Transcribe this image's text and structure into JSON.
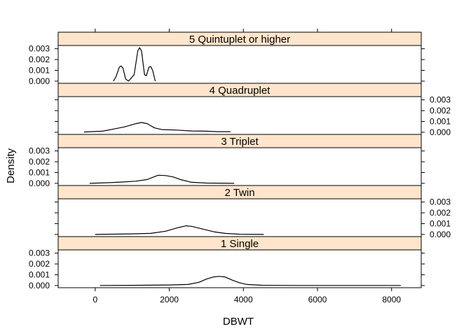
{
  "chart_data": {
    "type": "line",
    "subtype": "density-lattice",
    "title": "",
    "xlabel": "DBWT",
    "ylabel": "Density",
    "xlim": [
      -1000,
      8800
    ],
    "ylim": [
      -0.0002,
      0.0033
    ],
    "x_ticks": [
      0,
      2000,
      4000,
      6000,
      8000
    ],
    "x_tick_labels": [
      "0",
      "2000",
      "4000",
      "6000",
      "8000"
    ],
    "y_ticks": [
      0,
      0.001,
      0.002,
      0.003
    ],
    "y_tick_labels": [
      "0.000",
      "0.001",
      "0.002",
      "0.003"
    ],
    "strip_color": "#ffe5cc",
    "line_color": "#000000",
    "panels": [
      {
        "label": "1 Single",
        "y_axis_side": "left",
        "points": [
          [
            130,
            1e-05
          ],
          [
            1000,
            2e-05
          ],
          [
            2000,
            5e-05
          ],
          [
            2500,
            0.0001
          ],
          [
            2800,
            0.0003
          ],
          [
            3000,
            0.0006
          ],
          [
            3200,
            0.0008
          ],
          [
            3350,
            0.00085
          ],
          [
            3500,
            0.0008
          ],
          [
            3700,
            0.0005
          ],
          [
            3900,
            0.00025
          ],
          [
            4100,
            0.0001
          ],
          [
            4500,
            3e-05
          ],
          [
            5500,
            1e-05
          ],
          [
            8250,
            1e-05
          ]
        ]
      },
      {
        "label": "2 Twin",
        "y_axis_side": "right",
        "points": [
          [
            0,
            0.0
          ],
          [
            1000,
            5e-05
          ],
          [
            1500,
            0.0001
          ],
          [
            1900,
            0.0003
          ],
          [
            2200,
            0.0006
          ],
          [
            2450,
            0.0008
          ],
          [
            2600,
            0.00075
          ],
          [
            2900,
            0.0005
          ],
          [
            3200,
            0.00025
          ],
          [
            3500,
            0.0001
          ],
          [
            3900,
            2e-05
          ],
          [
            4550,
            0.0
          ]
        ]
      },
      {
        "label": "3 Triplet",
        "y_axis_side": "left",
        "points": [
          [
            -150,
            0.0
          ],
          [
            300,
            5e-05
          ],
          [
            700,
            0.00012
          ],
          [
            1100,
            0.0002
          ],
          [
            1400,
            0.00035
          ],
          [
            1700,
            0.00075
          ],
          [
            1900,
            0.00072
          ],
          [
            2100,
            0.0006
          ],
          [
            2300,
            0.00035
          ],
          [
            2600,
            0.0001
          ],
          [
            3000,
            3e-05
          ],
          [
            3750,
            0.0
          ]
        ]
      },
      {
        "label": "4 Quadruplet",
        "y_axis_side": "right",
        "points": [
          [
            -300,
            2e-05
          ],
          [
            200,
            0.0001
          ],
          [
            500,
            0.0003
          ],
          [
            800,
            0.0005
          ],
          [
            1100,
            0.0008
          ],
          [
            1250,
            0.0009
          ],
          [
            1400,
            0.0008
          ],
          [
            1600,
            0.0004
          ],
          [
            1800,
            0.00025
          ],
          [
            2200,
            0.0002
          ],
          [
            2600,
            0.00012
          ],
          [
            3000,
            0.0001
          ],
          [
            3300,
            5e-05
          ],
          [
            3650,
            5e-05
          ]
        ]
      },
      {
        "label": "5 Quintuplet or higher",
        "y_axis_side": "left",
        "points": [
          [
            490,
            0.0
          ],
          [
            560,
            0.0004
          ],
          [
            650,
            0.0013
          ],
          [
            700,
            0.0014
          ],
          [
            750,
            0.0012
          ],
          [
            820,
            0.0002
          ],
          [
            900,
            0.0
          ],
          [
            1050,
            0.0006
          ],
          [
            1150,
            0.0028
          ],
          [
            1200,
            0.0031
          ],
          [
            1250,
            0.0028
          ],
          [
            1330,
            0.0006
          ],
          [
            1380,
            0.0005
          ],
          [
            1450,
            0.0013
          ],
          [
            1500,
            0.00135
          ],
          [
            1550,
            0.001
          ],
          [
            1620,
            0.0
          ]
        ]
      }
    ]
  }
}
